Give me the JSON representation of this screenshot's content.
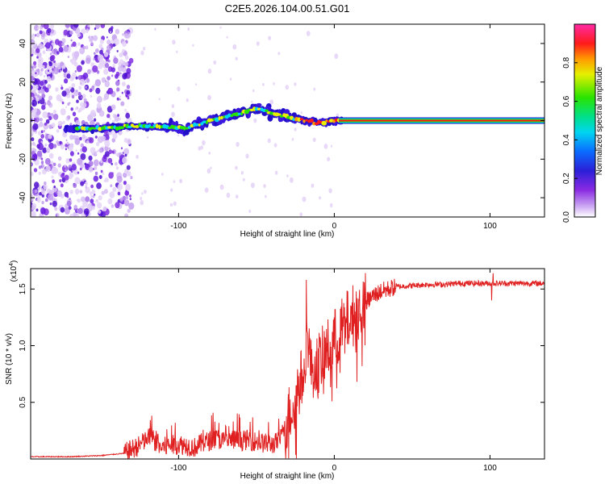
{
  "title": "C2E5.2026.104.00.51.G01",
  "chart_data": [
    {
      "type": "heatmap",
      "name": "spectrogram",
      "xlabel": "Height of straight line (km)",
      "ylabel": "Frequency (Hz)",
      "xlim": [
        -195,
        135
      ],
      "ylim": [
        -50,
        50
      ],
      "xticks": [
        -100,
        0,
        100
      ],
      "yticks": [
        -40,
        -20,
        0,
        20,
        40
      ],
      "xtick_labels": [
        "-100",
        "0",
        "100"
      ],
      "ytick_labels": [
        "-40",
        "-20",
        "0",
        "20",
        "40"
      ],
      "colorbar": {
        "label": "Normalized spectral amplitude",
        "range": [
          0,
          1
        ],
        "ticks": [
          "0.0",
          "0.2",
          "0.4",
          "0.6",
          "0.8"
        ],
        "tick_values": [
          0,
          0.2,
          0.4,
          0.6,
          0.8
        ],
        "colormap": "rainbow (white-violet-blue-cyan-green-yellow-red-magenta)"
      },
      "ridge": {
        "description": "Dominant Doppler ridge; noise speckle region for heights below about -135 km; stable tone at 0 Hz above 0 km",
        "x": [
          -170,
          -150,
          -130,
          -110,
          -95,
          -80,
          -65,
          -50,
          -40,
          -30,
          -20,
          -10,
          0,
          5,
          50,
          100,
          133
        ],
        "y": [
          -4,
          -4,
          -3,
          -3,
          -4,
          0,
          3,
          6,
          4,
          2,
          0,
          -1,
          0,
          0,
          0,
          0,
          0
        ]
      }
    },
    {
      "type": "line",
      "name": "snr",
      "xlabel": "Height of straight line (km)",
      "ylabel": "SNR (10 * v/v)",
      "exponent_label": "(x10",
      "exponent_sup": "4",
      "exponent_close": ")",
      "xlim": [
        -195,
        135
      ],
      "ylim": [
        0,
        1.68
      ],
      "xticks": [
        -100,
        0,
        100
      ],
      "yticks": [
        0.5,
        1.0,
        1.5
      ],
      "xtick_labels": [
        "-100",
        "0",
        "100"
      ],
      "ytick_labels": [
        "0.5",
        "1.0",
        "1.5"
      ],
      "color": "#e02020",
      "series": [
        {
          "name": "SNR",
          "x": [
            -195,
            -170,
            -150,
            -135,
            -125,
            -118,
            -112,
            -105,
            -100,
            -95,
            -90,
            -85,
            -80,
            -75,
            -70,
            -65,
            -60,
            -55,
            -50,
            -45,
            -40,
            -35,
            -30,
            -25,
            -20,
            -17,
            -15,
            -10,
            -5,
            0,
            5,
            10,
            15,
            20,
            25,
            30,
            35,
            40,
            50,
            60,
            70,
            80,
            90,
            100,
            110,
            120,
            133
          ],
          "y": [
            0.02,
            0.02,
            0.03,
            0.05,
            0.12,
            0.2,
            0.1,
            0.12,
            0.13,
            0.12,
            0.1,
            0.14,
            0.16,
            0.18,
            0.15,
            0.17,
            0.16,
            0.17,
            0.15,
            0.14,
            0.13,
            0.16,
            0.35,
            0.55,
            0.75,
            1.1,
            0.8,
            0.85,
            0.95,
            1.05,
            1.15,
            1.25,
            1.3,
            1.38,
            1.44,
            1.48,
            1.5,
            1.52,
            1.53,
            1.54,
            1.54,
            1.55,
            1.55,
            1.55,
            1.55,
            1.55,
            1.55
          ]
        }
      ]
    }
  ]
}
